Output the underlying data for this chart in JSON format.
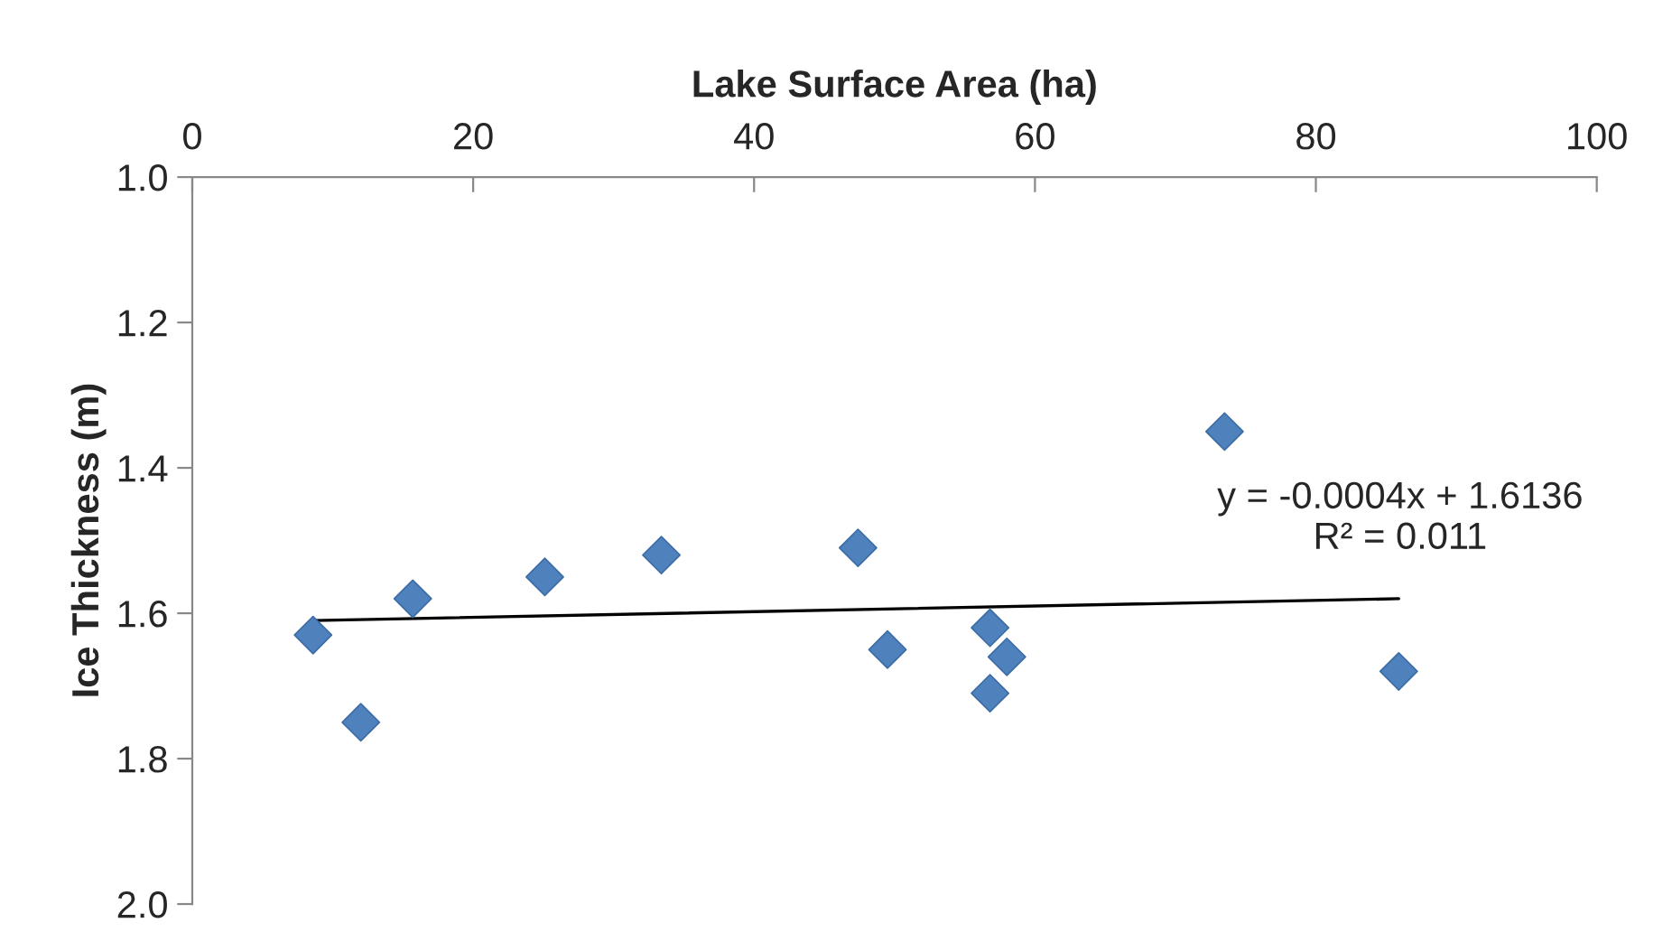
{
  "chart_data": {
    "type": "scatter",
    "xlabel": "Lake Surface Area (ha)",
    "ylabel": "Ice Thickness (m)",
    "xlim": [
      0,
      100
    ],
    "xticks": [
      0,
      20,
      40,
      60,
      80,
      100
    ],
    "ylim": [
      2.0,
      1.0
    ],
    "yticks": [
      {
        "value": 1.0,
        "label": "1.0"
      },
      {
        "value": 1.2,
        "label": "1.2"
      },
      {
        "value": 1.4,
        "label": "1.4"
      },
      {
        "value": 1.6,
        "label": "1.6"
      },
      {
        "value": 1.8,
        "label": "1.8"
      },
      {
        "value": 2.0,
        "label": "2.0"
      }
    ],
    "grid": false,
    "legend": false,
    "series": [
      {
        "marker": "diamond",
        "color": "#4f81bd",
        "x": [
          8.6,
          12.0,
          15.7,
          25.1,
          33.4,
          47.4,
          49.5,
          56.8,
          56.8,
          58.0,
          73.5,
          85.9
        ],
        "values": [
          1.63,
          1.75,
          1.58,
          1.55,
          1.52,
          1.51,
          1.65,
          1.62,
          1.71,
          1.66,
          1.35,
          1.68
        ]
      },
      {
        "type": "line",
        "marker": "none",
        "line_style": "solid",
        "color": "#000000",
        "x": [
          8.6,
          85.9
        ],
        "values": [
          1.61,
          1.58
        ]
      }
    ],
    "annotations": [
      "y = -0.0004x + 1.6136\nR² = 0.011"
    ]
  }
}
